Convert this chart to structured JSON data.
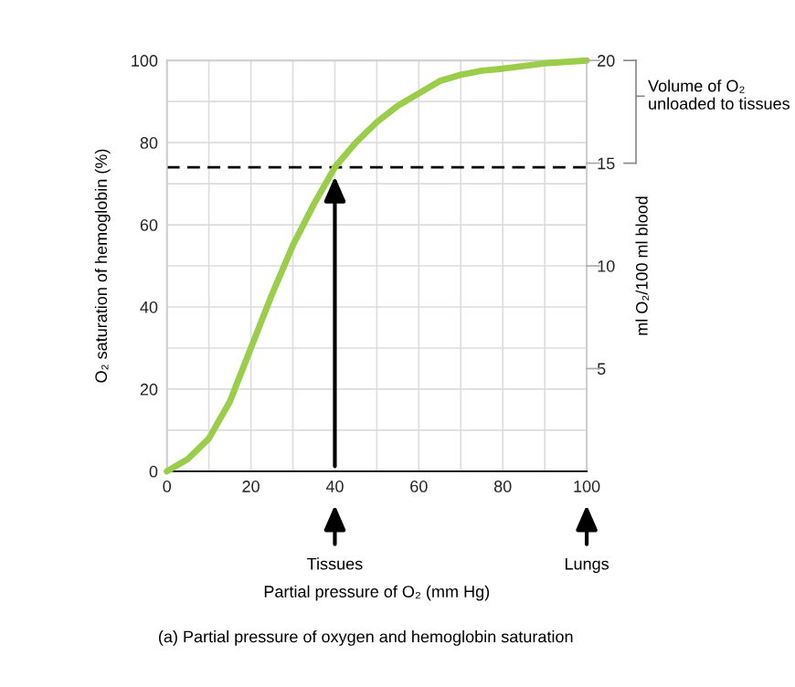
{
  "chart_data": {
    "type": "line",
    "x": [
      0,
      5,
      10,
      15,
      20,
      25,
      30,
      35,
      40,
      45,
      50,
      55,
      60,
      65,
      70,
      75,
      80,
      90,
      100
    ],
    "series": [
      {
        "color": "#9acd4a",
        "values": [
          0,
          3,
          8,
          17,
          30,
          43,
          55,
          65,
          74,
          80,
          85,
          89,
          92,
          95,
          96.5,
          97.5,
          98,
          99.3,
          100
        ]
      }
    ],
    "ylabel": "O₂ saturation of hemoglobin (%)",
    "y2label": "ml O₂/100 ml blood",
    "xlim": [
      0,
      100
    ],
    "ylim": [
      0,
      100
    ],
    "y2lim": [
      0,
      20
    ],
    "xticks": [
      0,
      {
        "value": 10,
        "label": null
      },
      20,
      {
        "value": 30,
        "label": null
      },
      40,
      {
        "value": 50,
        "label": null
      },
      60,
      {
        "value": 70,
        "label": null
      },
      80,
      {
        "value": 90,
        "label": null
      },
      100
    ],
    "yticks": [
      0,
      {
        "value": 10,
        "label": null
      },
      20,
      {
        "value": 30,
        "label": null
      },
      40,
      {
        "value": 50,
        "label": null
      },
      60,
      {
        "value": 70,
        "label": null
      },
      80,
      {
        "value": 90,
        "label": null
      },
      100
    ],
    "y2ticks": [
      5,
      10,
      15,
      20
    ],
    "ref_lines": [
      {
        "axis": "y",
        "value": 74,
        "color": "#000000",
        "line_style": "dashed"
      }
    ],
    "annotations": [
      {
        "text": "Tissues",
        "x": 40
      },
      {
        "text": "Lungs",
        "x": 100
      },
      "Volume of O₂ unloaded to tissues",
      "Partial pressure of O₂ (mm Hg)",
      "(a) Partial pressure of oxygen and hemoglobin saturation"
    ],
    "grid": true,
    "marker": "none",
    "line_style": "solid"
  }
}
